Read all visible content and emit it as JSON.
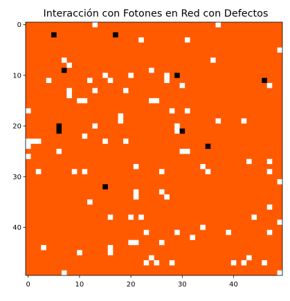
{
  "chart_data": {
    "type": "heatmap",
    "title": "Interacción con Fotones en Red con Defectos",
    "xlabel": "",
    "ylabel": "",
    "grid": false,
    "rows": 50,
    "cols": 50,
    "x_ticks": [
      0,
      10,
      20,
      30,
      40
    ],
    "x_tick_labels": [
      "0",
      "10",
      "20",
      "30",
      "40"
    ],
    "y_ticks": [
      0,
      10,
      20,
      30,
      40
    ],
    "y_tick_labels": [
      "0",
      "10",
      "20",
      "30",
      "40"
    ],
    "xlim": [
      -0.5,
      49.5
    ],
    "ylim": [
      49.5,
      -0.5
    ],
    "default_state": "lattice",
    "states": {
      "lattice": "#ff5a00",
      "vacancy": "#ffffff",
      "photon": "#000000"
    },
    "cells": [
      {
        "x": 13,
        "y": 0,
        "state": "vacancy"
      },
      {
        "x": 37,
        "y": 0,
        "state": "vacancy"
      },
      {
        "x": 5,
        "y": 2,
        "state": "photon"
      },
      {
        "x": 17,
        "y": 2,
        "state": "photon"
      },
      {
        "x": 22,
        "y": 3,
        "state": "vacancy"
      },
      {
        "x": 31,
        "y": 3,
        "state": "vacancy"
      },
      {
        "x": 49,
        "y": 5,
        "state": "vacancy"
      },
      {
        "x": 7,
        "y": 7,
        "state": "vacancy"
      },
      {
        "x": 36,
        "y": 7,
        "state": "vacancy"
      },
      {
        "x": 8,
        "y": 8,
        "state": "vacancy"
      },
      {
        "x": 7,
        "y": 9,
        "state": "photon"
      },
      {
        "x": 24,
        "y": 9,
        "state": "vacancy"
      },
      {
        "x": 15,
        "y": 10,
        "state": "vacancy"
      },
      {
        "x": 20,
        "y": 10,
        "state": "vacancy"
      },
      {
        "x": 27,
        "y": 10,
        "state": "vacancy"
      },
      {
        "x": 29,
        "y": 10,
        "state": "photon"
      },
      {
        "x": 4,
        "y": 11,
        "state": "vacancy"
      },
      {
        "x": 12,
        "y": 11,
        "state": "vacancy"
      },
      {
        "x": 16,
        "y": 11,
        "state": "vacancy"
      },
      {
        "x": 27,
        "y": 11,
        "state": "vacancy"
      },
      {
        "x": 46,
        "y": 11,
        "state": "photon"
      },
      {
        "x": 30,
        "y": 12,
        "state": "vacancy"
      },
      {
        "x": 47,
        "y": 12,
        "state": "vacancy"
      },
      {
        "x": 8,
        "y": 13,
        "state": "vacancy"
      },
      {
        "x": 13,
        "y": 13,
        "state": "vacancy"
      },
      {
        "x": 19,
        "y": 13,
        "state": "vacancy"
      },
      {
        "x": 8,
        "y": 14,
        "state": "vacancy"
      },
      {
        "x": 10,
        "y": 15,
        "state": "vacancy"
      },
      {
        "x": 11,
        "y": 15,
        "state": "vacancy"
      },
      {
        "x": 24,
        "y": 15,
        "state": "vacancy"
      },
      {
        "x": 25,
        "y": 15,
        "state": "vacancy"
      },
      {
        "x": 0,
        "y": 17,
        "state": "vacancy"
      },
      {
        "x": 28,
        "y": 17,
        "state": "vacancy"
      },
      {
        "x": 31,
        "y": 17,
        "state": "vacancy"
      },
      {
        "x": 18,
        "y": 18,
        "state": "vacancy"
      },
      {
        "x": 37,
        "y": 19,
        "state": "vacancy"
      },
      {
        "x": 42,
        "y": 19,
        "state": "vacancy"
      },
      {
        "x": 18,
        "y": 19,
        "state": "vacancy"
      },
      {
        "x": 6,
        "y": 20,
        "state": "photon"
      },
      {
        "x": 13,
        "y": 20,
        "state": "vacancy"
      },
      {
        "x": 29,
        "y": 20,
        "state": "vacancy"
      },
      {
        "x": 6,
        "y": 21,
        "state": "photon"
      },
      {
        "x": 29,
        "y": 21,
        "state": "vacancy"
      },
      {
        "x": 30,
        "y": 21,
        "state": "photon"
      },
      {
        "x": 11,
        "y": 22,
        "state": "vacancy"
      },
      {
        "x": 0,
        "y": 23,
        "state": "vacancy"
      },
      {
        "x": 1,
        "y": 23,
        "state": "vacancy"
      },
      {
        "x": 2,
        "y": 23,
        "state": "vacancy"
      },
      {
        "x": 15,
        "y": 23,
        "state": "vacancy"
      },
      {
        "x": 19,
        "y": 23,
        "state": "vacancy"
      },
      {
        "x": 0,
        "y": 24,
        "state": "vacancy"
      },
      {
        "x": 35,
        "y": 24,
        "state": "photon"
      },
      {
        "x": 6,
        "y": 25,
        "state": "vacancy"
      },
      {
        "x": 30,
        "y": 25,
        "state": "vacancy"
      },
      {
        "x": 31,
        "y": 25,
        "state": "vacancy"
      },
      {
        "x": 0,
        "y": 26,
        "state": "vacancy"
      },
      {
        "x": 43,
        "y": 27,
        "state": "vacancy"
      },
      {
        "x": 47,
        "y": 27,
        "state": "vacancy"
      },
      {
        "x": 21,
        "y": 28,
        "state": "vacancy"
      },
      {
        "x": 34,
        "y": 28,
        "state": "vacancy"
      },
      {
        "x": 2,
        "y": 29,
        "state": "vacancy"
      },
      {
        "x": 9,
        "y": 29,
        "state": "vacancy"
      },
      {
        "x": 11,
        "y": 29,
        "state": "vacancy"
      },
      {
        "x": 26,
        "y": 29,
        "state": "vacancy"
      },
      {
        "x": 35,
        "y": 29,
        "state": "vacancy"
      },
      {
        "x": 47,
        "y": 29,
        "state": "vacancy"
      },
      {
        "x": 49,
        "y": 31,
        "state": "vacancy"
      },
      {
        "x": 15,
        "y": 32,
        "state": "photon"
      },
      {
        "x": 21,
        "y": 33,
        "state": "vacancy"
      },
      {
        "x": 26,
        "y": 33,
        "state": "vacancy"
      },
      {
        "x": 21,
        "y": 34,
        "state": "vacancy"
      },
      {
        "x": 27,
        "y": 34,
        "state": "vacancy"
      },
      {
        "x": 12,
        "y": 35,
        "state": "vacancy"
      },
      {
        "x": 47,
        "y": 36,
        "state": "vacancy"
      },
      {
        "x": 16,
        "y": 38,
        "state": "vacancy"
      },
      {
        "x": 20,
        "y": 38,
        "state": "vacancy"
      },
      {
        "x": 22,
        "y": 38,
        "state": "vacancy"
      },
      {
        "x": 44,
        "y": 38,
        "state": "vacancy"
      },
      {
        "x": 49,
        "y": 39,
        "state": "vacancy"
      },
      {
        "x": 34,
        "y": 40,
        "state": "vacancy"
      },
      {
        "x": 23,
        "y": 41,
        "state": "vacancy"
      },
      {
        "x": 29,
        "y": 41,
        "state": "vacancy"
      },
      {
        "x": 39,
        "y": 41,
        "state": "vacancy"
      },
      {
        "x": 47,
        "y": 41,
        "state": "vacancy"
      },
      {
        "x": 32,
        "y": 42,
        "state": "vacancy"
      },
      {
        "x": 20,
        "y": 43,
        "state": "vacancy"
      },
      {
        "x": 21,
        "y": 43,
        "state": "vacancy"
      },
      {
        "x": 26,
        "y": 43,
        "state": "vacancy"
      },
      {
        "x": 3,
        "y": 44,
        "state": "vacancy"
      },
      {
        "x": 16,
        "y": 44,
        "state": "vacancy"
      },
      {
        "x": 10,
        "y": 45,
        "state": "vacancy"
      },
      {
        "x": 16,
        "y": 45,
        "state": "vacancy"
      },
      {
        "x": 24,
        "y": 46,
        "state": "vacancy"
      },
      {
        "x": 43,
        "y": 46,
        "state": "vacancy"
      },
      {
        "x": 23,
        "y": 47,
        "state": "vacancy"
      },
      {
        "x": 25,
        "y": 47,
        "state": "vacancy"
      },
      {
        "x": 28,
        "y": 47,
        "state": "vacancy"
      },
      {
        "x": 40,
        "y": 47,
        "state": "vacancy"
      },
      {
        "x": 42,
        "y": 47,
        "state": "vacancy"
      },
      {
        "x": 46,
        "y": 47,
        "state": "vacancy"
      },
      {
        "x": 7,
        "y": 49,
        "state": "vacancy"
      },
      {
        "x": 49,
        "y": 49,
        "state": "vacancy"
      }
    ]
  }
}
